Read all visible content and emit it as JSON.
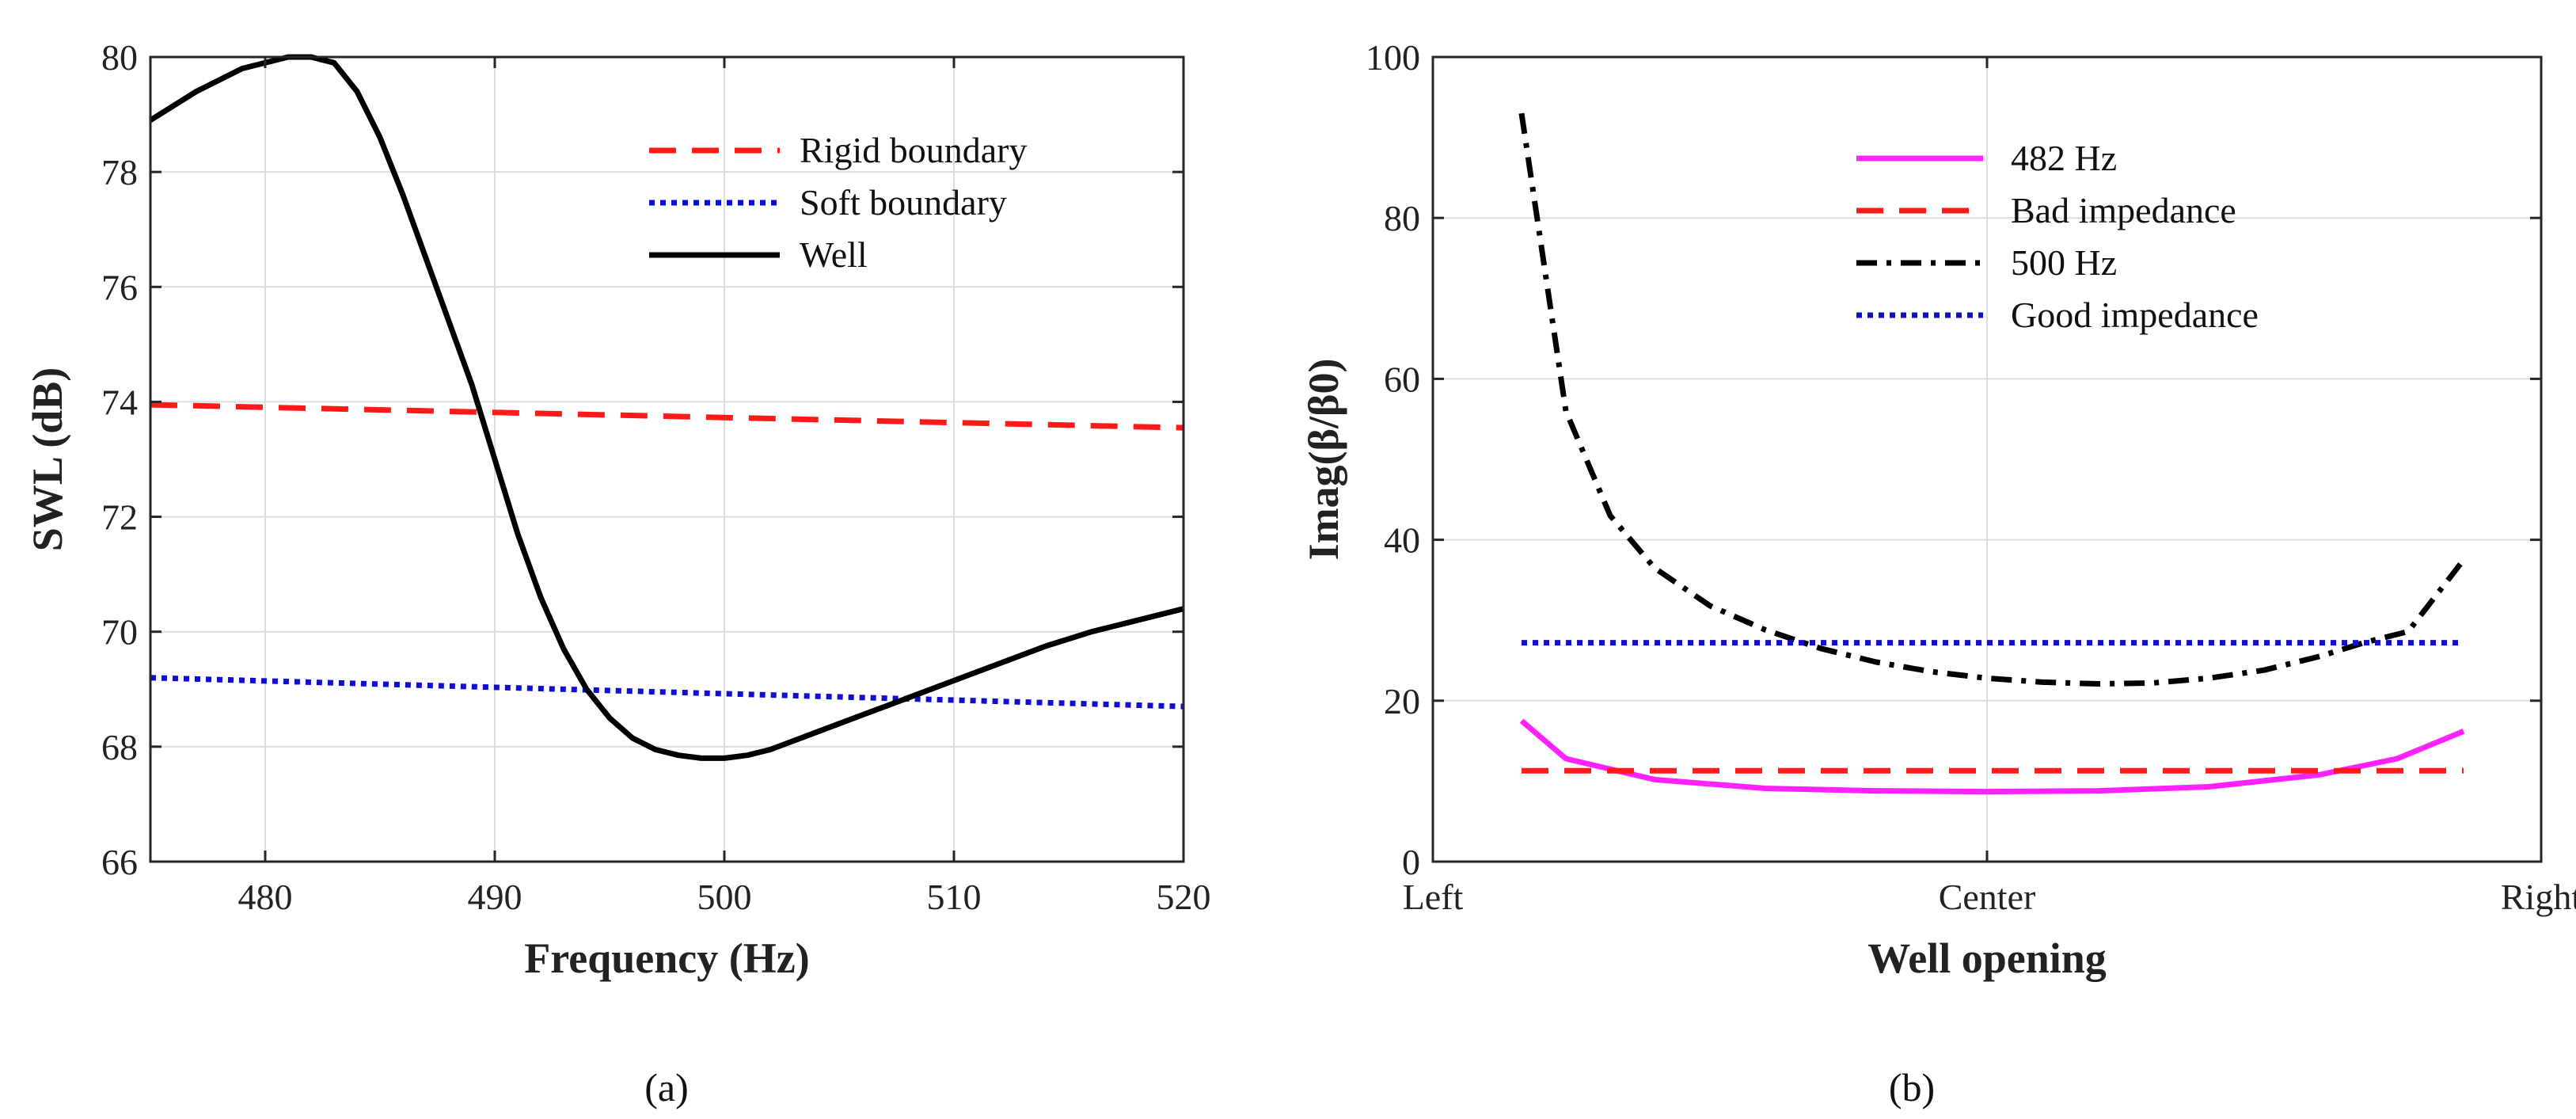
{
  "figure": {
    "caption_a": "(a)",
    "caption_b": "(b)"
  },
  "chart_data": [
    {
      "type": "line",
      "id": "a",
      "xlabel": "Frequency (Hz)",
      "ylabel": "SWL (dB)",
      "xlim": [
        475,
        520
      ],
      "ylim": [
        66,
        80
      ],
      "xticks": [
        480,
        490,
        500,
        510,
        520
      ],
      "yticks": [
        66,
        68,
        70,
        72,
        74,
        76,
        78,
        80
      ],
      "grid": true,
      "legend_position": "top-right",
      "series": [
        {
          "name": "Rigid boundary",
          "style": "dashed",
          "color": "#ff1a1a",
          "x": [
            475,
            520
          ],
          "y": [
            73.95,
            73.55
          ]
        },
        {
          "name": "Soft boundary",
          "style": "dotted",
          "color": "#1010c8",
          "x": [
            475,
            520
          ],
          "y": [
            69.2,
            68.7
          ]
        },
        {
          "name": "Well",
          "style": "solid",
          "color": "#000000",
          "x": [
            475,
            477,
            479,
            481,
            482,
            483,
            484,
            485,
            486,
            487,
            488,
            489,
            490,
            491,
            492,
            493,
            494,
            495,
            496,
            497,
            498,
            499,
            500,
            501,
            502,
            503,
            504,
            505,
            506,
            507,
            508,
            510,
            512,
            514,
            516,
            518,
            520
          ],
          "y": [
            78.9,
            79.4,
            79.8,
            80.0,
            80.0,
            79.9,
            79.4,
            78.6,
            77.6,
            76.5,
            75.4,
            74.3,
            73.0,
            71.7,
            70.6,
            69.7,
            69.0,
            68.5,
            68.15,
            67.95,
            67.85,
            67.8,
            67.8,
            67.85,
            67.95,
            68.1,
            68.25,
            68.4,
            68.55,
            68.7,
            68.85,
            69.15,
            69.45,
            69.75,
            70.0,
            70.2,
            70.4
          ]
        }
      ]
    },
    {
      "type": "line",
      "id": "b",
      "xlabel": "Well opening",
      "ylabel": "Imag(β/β0)",
      "xlim": [
        0,
        1
      ],
      "ylim": [
        0,
        100
      ],
      "xticks": [
        0,
        0.5,
        1
      ],
      "xticklabels": [
        "Left",
        "Center",
        "Right"
      ],
      "yticks": [
        0,
        20,
        40,
        60,
        80,
        100
      ],
      "grid": true,
      "legend_position": "top-center",
      "series": [
        {
          "name": "482 Hz",
          "style": "solid",
          "color": "#ff22ff",
          "x": [
            0.08,
            0.12,
            0.2,
            0.3,
            0.4,
            0.5,
            0.6,
            0.7,
            0.8,
            0.87,
            0.93
          ],
          "y": [
            17.5,
            12.8,
            10.2,
            9.1,
            8.8,
            8.7,
            8.8,
            9.3,
            10.8,
            12.8,
            16.2
          ]
        },
        {
          "name": "Bad impedance",
          "style": "dashed",
          "color": "#ff1a1a",
          "x": [
            0.08,
            0.93
          ],
          "y": [
            11.3,
            11.3
          ]
        },
        {
          "name": "500 Hz",
          "style": "dashdot",
          "color": "#000000",
          "x": [
            0.08,
            0.12,
            0.16,
            0.2,
            0.25,
            0.3,
            0.35,
            0.4,
            0.45,
            0.5,
            0.55,
            0.6,
            0.65,
            0.7,
            0.75,
            0.8,
            0.84,
            0.88,
            0.93
          ],
          "y": [
            93,
            56,
            43,
            36.5,
            31.8,
            28.8,
            26.5,
            24.8,
            23.6,
            22.8,
            22.3,
            22.1,
            22.2,
            22.8,
            23.8,
            25.5,
            27.2,
            28.6,
            37.5
          ]
        },
        {
          "name": "Good impedance",
          "style": "dotted",
          "color": "#1010c8",
          "x": [
            0.08,
            0.93
          ],
          "y": [
            27.2,
            27.2
          ]
        }
      ]
    }
  ]
}
